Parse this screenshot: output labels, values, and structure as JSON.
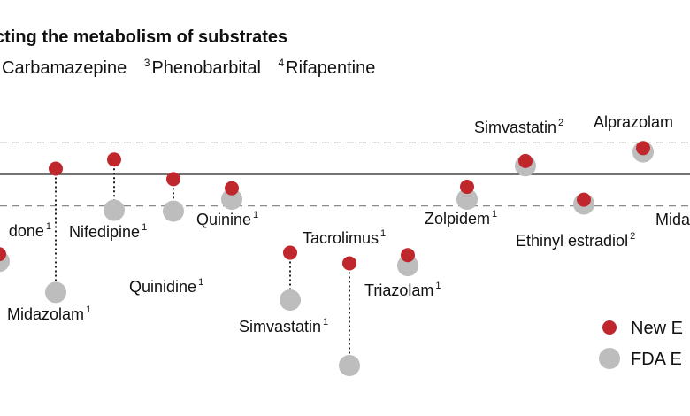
{
  "title": "cting the metabolism of substrates",
  "footnotes": [
    {
      "num": "",
      "label": "Carbamazepine"
    },
    {
      "num": "3",
      "label": "Phenobarbital"
    },
    {
      "num": "4",
      "label": "Rifapentine"
    }
  ],
  "colors": {
    "new": "#c0272d",
    "fda": "#bdbdbd",
    "text": "#111111",
    "ref_line": "#222222",
    "dashed": "#8a8a8a"
  },
  "chart_data": {
    "type": "scatter",
    "title": "",
    "xlabel": "",
    "ylabel": "",
    "ylim": [
      -3.2,
      1.6
    ],
    "reference_line": 0,
    "dashed_lines": [
      0.66,
      -0.66
    ],
    "series": [
      {
        "name": "New E",
        "color": "#c0272d"
      },
      {
        "name": "FDA E",
        "color": "#bdbdbd"
      }
    ],
    "points": [
      {
        "label": "done",
        "sup": "1",
        "new": -1.67,
        "fda": -1.82,
        "connector": false
      },
      {
        "label": "Midazolam",
        "sup": "1",
        "new": 0.12,
        "fda": -2.47,
        "connector": true
      },
      {
        "label": "Nifedipine",
        "sup": "1",
        "new": 0.31,
        "fda": -0.75,
        "connector": true
      },
      {
        "label": "Quinidine",
        "sup": "1",
        "new": -0.1,
        "fda": -0.77,
        "connector": true
      },
      {
        "label": "Quinine",
        "sup": "1",
        "new": -0.29,
        "fda": -0.52,
        "connector": false
      },
      {
        "label": "Simvastatin",
        "sup": "1",
        "new": -1.64,
        "fda": -2.63,
        "connector": true
      },
      {
        "label": "Tacrolimus",
        "sup": "1",
        "new": -1.86,
        "fda": -4.0,
        "connector": true
      },
      {
        "label": "Triazolam",
        "sup": "1",
        "new": -1.69,
        "fda": -1.91,
        "connector": false
      },
      {
        "label": "Zolpidem",
        "sup": "1",
        "new": -0.26,
        "fda": -0.52,
        "connector": false
      },
      {
        "label": "Simvastatin",
        "sup": "2",
        "new": 0.28,
        "fda": 0.18,
        "connector": false
      },
      {
        "label": "Ethinyl estradiol",
        "sup": "2",
        "new": -0.53,
        "fda": -0.62,
        "connector": false
      },
      {
        "label": "Alprazolam",
        "sup": "",
        "new": 0.55,
        "fda": 0.47,
        "connector": false
      },
      {
        "label": "Mida",
        "sup": "",
        "new": null,
        "fda": null,
        "connector": false
      }
    ]
  },
  "legend": {
    "items": [
      {
        "label": "New E",
        "series": "new"
      },
      {
        "label": "FDA E",
        "series": "fda"
      }
    ]
  }
}
